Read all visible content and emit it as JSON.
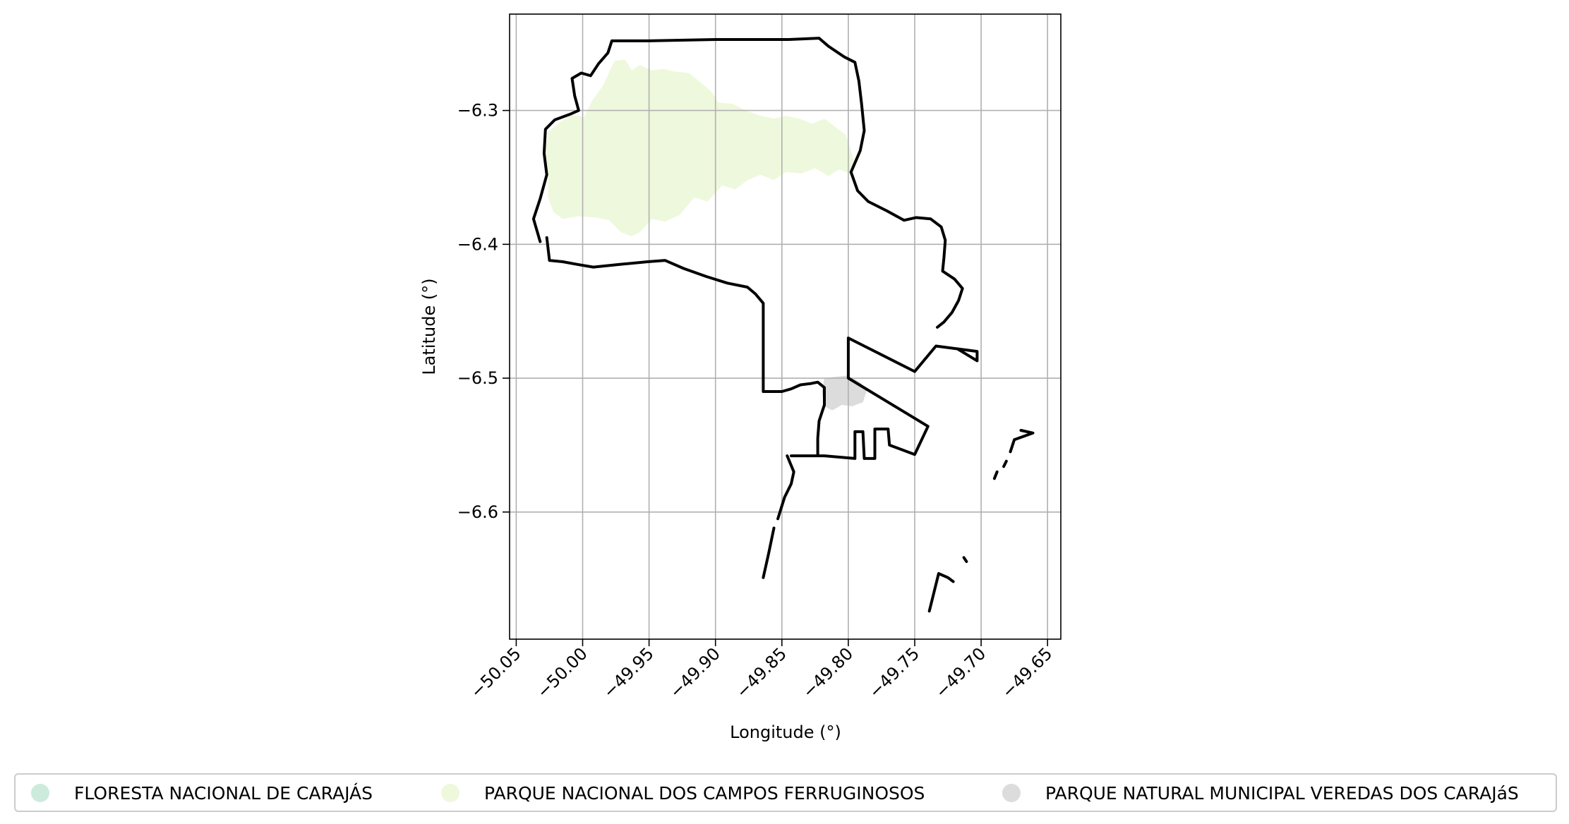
{
  "chart_data": {
    "type": "map",
    "xlabel": "Longitude (°)",
    "ylabel": "Latitude (°)",
    "xlim": [
      -50.055,
      -49.64
    ],
    "ylim": [
      -6.695,
      -6.228
    ],
    "x_ticks": [
      -50.05,
      -50.0,
      -49.95,
      -49.9,
      -49.85,
      -49.8,
      -49.75,
      -49.7,
      -49.65
    ],
    "x_tick_labels": [
      "−50.05",
      "−50.00",
      "−49.95",
      "−49.90",
      "−49.85",
      "−49.80",
      "−49.75",
      "−49.70",
      "−49.65"
    ],
    "y_ticks": [
      -6.3,
      -6.4,
      -6.5,
      -6.6
    ],
    "y_tick_labels": [
      "−6.3",
      "−6.4",
      "−6.5",
      "−6.6"
    ],
    "grid": true,
    "legend_position": "bottom",
    "legend": [
      {
        "label": "FLORESTA NACIONAL DE CARAJÁS",
        "color": "#cdebdc"
      },
      {
        "label": "PARQUE NACIONAL DOS CAMPOS FERRUGINOSOS",
        "color": "#eef8dc"
      },
      {
        "label": "PARQUE NATURAL MUNICIPAL VEREDAS DOS CARAJáS",
        "color": "#dcdcdc"
      }
    ],
    "areas": [
      {
        "name": "PARQUE NACIONAL DOS CAMPOS FERRUGINOSOS",
        "color": "#eef8dc",
        "coords": [
          [
            -49.976,
            -6.263
          ],
          [
            -49.968,
            -6.262
          ],
          [
            -49.963,
            -6.27
          ],
          [
            -49.957,
            -6.266
          ],
          [
            -49.948,
            -6.27
          ],
          [
            -49.94,
            -6.269
          ],
          [
            -49.93,
            -6.271
          ],
          [
            -49.92,
            -6.272
          ],
          [
            -49.91,
            -6.28
          ],
          [
            -49.903,
            -6.286
          ],
          [
            -49.898,
            -6.294
          ],
          [
            -49.887,
            -6.295
          ],
          [
            -49.877,
            -6.3
          ],
          [
            -49.866,
            -6.304
          ],
          [
            -49.856,
            -6.306
          ],
          [
            -49.847,
            -6.304
          ],
          [
            -49.837,
            -6.306
          ],
          [
            -49.827,
            -6.31
          ],
          [
            -49.818,
            -6.306
          ],
          [
            -49.809,
            -6.313
          ],
          [
            -49.802,
            -6.318
          ],
          [
            -49.798,
            -6.33
          ],
          [
            -49.795,
            -6.34
          ],
          [
            -49.799,
            -6.347
          ],
          [
            -49.807,
            -6.344
          ],
          [
            -49.815,
            -6.349
          ],
          [
            -49.825,
            -6.343
          ],
          [
            -49.835,
            -6.347
          ],
          [
            -49.847,
            -6.346
          ],
          [
            -49.856,
            -6.352
          ],
          [
            -49.866,
            -6.348
          ],
          [
            -49.876,
            -6.352
          ],
          [
            -49.885,
            -6.359
          ],
          [
            -49.895,
            -6.356
          ],
          [
            -49.906,
            -6.368
          ],
          [
            -49.916,
            -6.365
          ],
          [
            -49.927,
            -6.378
          ],
          [
            -49.938,
            -6.383
          ],
          [
            -49.948,
            -6.381
          ],
          [
            -49.957,
            -6.391
          ],
          [
            -49.963,
            -6.394
          ],
          [
            -49.971,
            -6.391
          ],
          [
            -49.98,
            -6.382
          ],
          [
            -49.99,
            -6.38
          ],
          [
            -50.003,
            -6.379
          ],
          [
            -50.015,
            -6.381
          ],
          [
            -50.022,
            -6.376
          ],
          [
            -50.026,
            -6.365
          ],
          [
            -50.026,
            -6.348
          ],
          [
            -50.028,
            -6.332
          ],
          [
            -50.026,
            -6.316
          ],
          [
            -50.016,
            -6.308
          ],
          [
            -50.008,
            -6.303
          ],
          [
            -49.999,
            -6.305
          ],
          [
            -49.993,
            -6.293
          ],
          [
            -49.985,
            -6.282
          ]
        ]
      },
      {
        "name": "PARQUE NATURAL MUNICIPAL VEREDAS DOS CARAJáS",
        "color": "#dcdcdc",
        "coords": [
          [
            -49.818,
            -6.5
          ],
          [
            -49.81,
            -6.499
          ],
          [
            -49.8,
            -6.498
          ],
          [
            -49.791,
            -6.503
          ],
          [
            -49.786,
            -6.509
          ],
          [
            -49.789,
            -6.518
          ],
          [
            -49.797,
            -6.521
          ],
          [
            -49.805,
            -6.52
          ],
          [
            -49.812,
            -6.524
          ],
          [
            -49.818,
            -6.521
          ],
          [
            -49.82,
            -6.51
          ]
        ]
      }
    ],
    "boundary_lines": [
      [
        [
          -50.027,
          -6.395
        ],
        [
          -50.025,
          -6.412
        ],
        [
          -50.015,
          -6.413
        ],
        [
          -50.004,
          -6.415
        ],
        [
          -49.992,
          -6.417
        ],
        [
          -49.972,
          -6.415
        ],
        [
          -49.951,
          -6.413
        ],
        [
          -49.938,
          -6.412
        ],
        [
          -49.924,
          -6.418
        ],
        [
          -49.907,
          -6.424
        ],
        [
          -49.891,
          -6.429
        ],
        [
          -49.876,
          -6.432
        ],
        [
          -49.87,
          -6.437
        ],
        [
          -49.864,
          -6.444
        ],
        [
          -49.864,
          -6.46
        ],
        [
          -49.864,
          -6.475
        ],
        [
          -49.864,
          -6.495
        ],
        [
          -49.864,
          -6.51
        ],
        [
          -49.85,
          -6.51
        ],
        [
          -49.843,
          -6.508
        ],
        [
          -49.836,
          -6.505
        ],
        [
          -49.828,
          -6.504
        ],
        [
          -49.823,
          -6.503
        ],
        [
          -49.818,
          -6.507
        ],
        [
          -49.818,
          -6.52
        ],
        [
          -49.822,
          -6.532
        ],
        [
          -49.823,
          -6.545
        ],
        [
          -49.823,
          -6.558
        ],
        [
          -49.843,
          -6.558
        ],
        [
          -49.818,
          -6.558
        ],
        [
          -49.795,
          -6.56
        ],
        [
          -49.795,
          -6.54
        ],
        [
          -49.789,
          -6.54
        ],
        [
          -49.788,
          -6.56
        ],
        [
          -49.78,
          -6.56
        ],
        [
          -49.78,
          -6.538
        ],
        [
          -49.77,
          -6.538
        ],
        [
          -49.769,
          -6.55
        ],
        [
          -49.75,
          -6.557
        ],
        [
          -49.74,
          -6.536
        ],
        [
          -49.8,
          -6.5
        ],
        [
          -49.8,
          -6.47
        ],
        [
          -49.75,
          -6.495
        ],
        [
          -49.734,
          -6.476
        ],
        [
          -49.703,
          -6.48
        ],
        [
          -49.703,
          -6.487
        ],
        [
          -49.718,
          -6.478
        ]
      ],
      [
        [
          -50.032,
          -6.398
        ],
        [
          -50.037,
          -6.381
        ],
        [
          -50.032,
          -6.366
        ],
        [
          -50.027,
          -6.348
        ],
        [
          -50.029,
          -6.332
        ],
        [
          -50.028,
          -6.314
        ],
        [
          -50.021,
          -6.307
        ],
        [
          -50.01,
          -6.303
        ],
        [
          -50.003,
          -6.3
        ],
        [
          -50.006,
          -6.289
        ],
        [
          -50.008,
          -6.276
        ],
        [
          -50.001,
          -6.272
        ],
        [
          -49.994,
          -6.274
        ],
        [
          -49.988,
          -6.265
        ],
        [
          -49.981,
          -6.257
        ],
        [
          -49.978,
          -6.248
        ],
        [
          -49.95,
          -6.248
        ],
        [
          -49.9,
          -6.247
        ],
        [
          -49.845,
          -6.247
        ],
        [
          -49.822,
          -6.246
        ],
        [
          -49.815,
          -6.252
        ],
        [
          -49.803,
          -6.26
        ],
        [
          -49.795,
          -6.264
        ],
        [
          -49.792,
          -6.278
        ],
        [
          -49.79,
          -6.295
        ],
        [
          -49.788,
          -6.315
        ],
        [
          -49.791,
          -6.33
        ],
        [
          -49.798,
          -6.346
        ],
        [
          -49.793,
          -6.36
        ],
        [
          -49.785,
          -6.368
        ],
        [
          -49.771,
          -6.375
        ],
        [
          -49.758,
          -6.382
        ],
        [
          -49.749,
          -6.38
        ],
        [
          -49.738,
          -6.381
        ],
        [
          -49.73,
          -6.387
        ],
        [
          -49.727,
          -6.397
        ],
        [
          -49.728,
          -6.41
        ],
        [
          -49.729,
          -6.42
        ],
        [
          -49.72,
          -6.426
        ],
        [
          -49.714,
          -6.433
        ],
        [
          -49.717,
          -6.442
        ],
        [
          -49.722,
          -6.451
        ],
        [
          -49.728,
          -6.458
        ],
        [
          -49.733,
          -6.462
        ]
      ],
      [
        [
          -49.846,
          -6.558
        ],
        [
          -49.841,
          -6.57
        ],
        [
          -49.843,
          -6.579
        ],
        [
          -49.848,
          -6.589
        ],
        [
          -49.853,
          -6.605
        ]
      ],
      [
        [
          -49.856,
          -6.612
        ],
        [
          -49.86,
          -6.631
        ],
        [
          -49.864,
          -6.649
        ]
      ],
      [
        [
          -49.739,
          -6.674
        ],
        [
          -49.732,
          -6.646
        ],
        [
          -49.725,
          -6.649
        ],
        [
          -49.721,
          -6.652
        ]
      ],
      [
        [
          -49.713,
          -6.634
        ],
        [
          -49.711,
          -6.637
        ]
      ],
      [
        [
          -49.67,
          -6.539
        ],
        [
          -49.661,
          -6.541
        ],
        [
          -49.675,
          -6.546
        ],
        [
          -49.678,
          -6.555
        ]
      ],
      [
        [
          -49.681,
          -6.562
        ],
        [
          -49.683,
          -6.566
        ]
      ],
      [
        [
          -49.688,
          -6.57
        ],
        [
          -49.69,
          -6.575
        ]
      ]
    ]
  }
}
